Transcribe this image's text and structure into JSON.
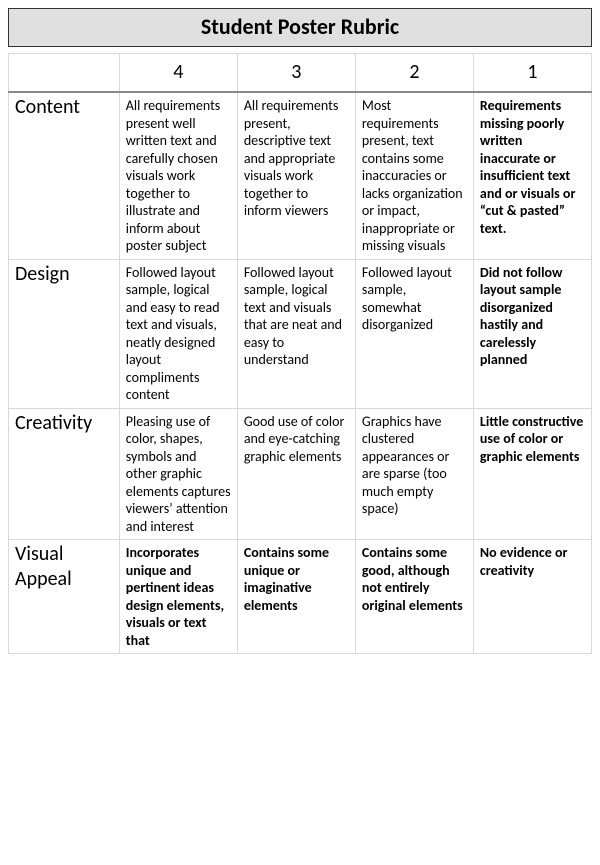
{
  "title": "Student Poster Rubric",
  "columns": [
    "4",
    "3",
    "2",
    "1"
  ],
  "criteria": [
    {
      "label": "Content",
      "cells": [
        {
          "text": "All requirements present well written text and carefully chosen visuals work together to illustrate and inform about poster subject",
          "bold": false
        },
        {
          "text": "All requirements present, descriptive text and appropriate visuals work together to inform viewers",
          "bold": false
        },
        {
          "text": "Most requirements present, text contains some inaccuracies or lacks organization or impact, inappropriate or missing visuals",
          "bold": false
        },
        {
          "text": "Requirements missing poorly written inaccurate or insufficient text and or visuals or “cut & pasted” text.",
          "bold": true
        }
      ]
    },
    {
      "label": "Design",
      "cells": [
        {
          "text": "Followed layout sample, logical and easy to read text and visuals, neatly designed layout compliments content",
          "bold": false
        },
        {
          "text": "Followed layout sample, logical text and visuals that are neat and easy to understand",
          "bold": false
        },
        {
          "text": "Followed layout sample, somewhat disorganized",
          "bold": false
        },
        {
          "text": "Did not follow layout sample disorganized hastily and carelessly planned",
          "bold": true
        }
      ]
    },
    {
      "label": "Creativity",
      "cells": [
        {
          "text": "Pleasing use of color, shapes, symbols and other graphic elements captures viewers’ attention and interest",
          "bold": false
        },
        {
          "text": "Good use of color and eye-catching graphic elements",
          "bold": false
        },
        {
          "text": "Graphics have clustered appearances or are sparse (too much empty space)",
          "bold": false
        },
        {
          "text": "Little constructive use of color or graphic elements",
          "bold": true
        }
      ]
    },
    {
      "label": "Visual Appeal",
      "cells": [
        {
          "text": "Incorporates unique and pertinent ideas design elements, visuals or text that",
          "bold": true
        },
        {
          "text": "Contains some unique or imaginative elements",
          "bold": true
        },
        {
          "text": "Contains some good, although not entirely original elements",
          "bold": true
        },
        {
          "text": "No evidence or creativity",
          "bold": true
        }
      ]
    }
  ],
  "colors": {
    "title_bg": "#e0e0e0",
    "title_border": "#333333",
    "cell_border": "#d9d9d9",
    "header_bottom": "#888888",
    "background": "#ffffff"
  },
  "fontsizes": {
    "title": 22,
    "header": 20,
    "row_label": 20,
    "cell": 14
  }
}
